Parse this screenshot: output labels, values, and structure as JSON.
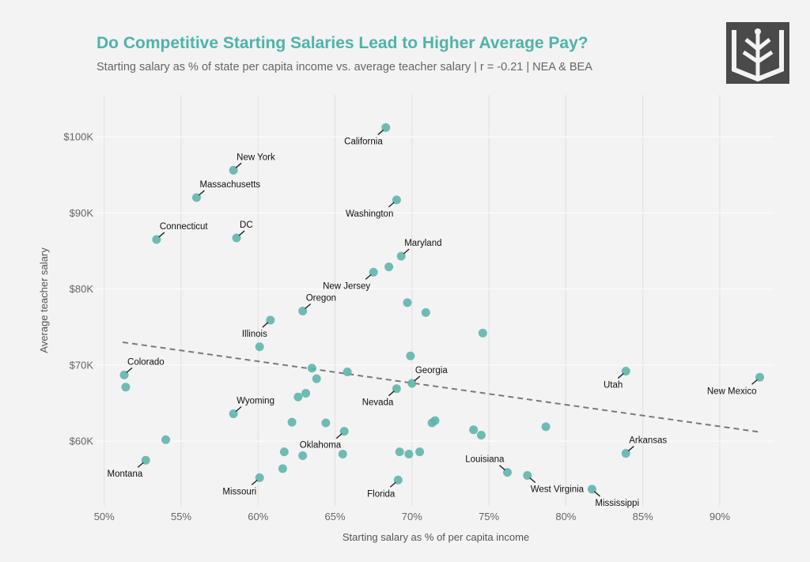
{
  "header": {
    "title": "Do Competitive Starting Salaries Lead to Higher Average Pay?",
    "subtitle": "Starting salary as % of state per capita income vs. average teacher salary | r = -0.21 | NEA & BEA"
  },
  "logo": {
    "icon": "tree-in-book-logo"
  },
  "colors": {
    "point": "#5cb3ab",
    "trend": "#7a7a7a",
    "title": "#4fb3aa",
    "grid": "#e2e2e2"
  },
  "chart_data": {
    "type": "scatter",
    "xlabel": "Starting salary as % of per capita income",
    "ylabel": "Average teacher salary",
    "xlim": [
      49.5,
      93.5
    ],
    "ylim": [
      51500,
      105500
    ],
    "x_ticks": [
      50,
      55,
      60,
      65,
      70,
      75,
      80,
      85,
      90
    ],
    "x_tick_labels": [
      "50%",
      "55%",
      "60%",
      "65%",
      "70%",
      "75%",
      "80%",
      "85%",
      "90%"
    ],
    "y_ticks": [
      60000,
      70000,
      80000,
      90000,
      100000
    ],
    "y_tick_labels": [
      "$60K",
      "$70K",
      "$80K",
      "$90K",
      "$100K"
    ],
    "trend_line": {
      "x": [
        51.2,
        92.6
      ],
      "y": [
        73000,
        61200
      ],
      "style": "dashed"
    },
    "points": [
      {
        "x": 68.3,
        "y": 101200,
        "label": "California",
        "pos": "bl"
      },
      {
        "x": 58.4,
        "y": 95600,
        "label": "New York",
        "pos": "tr"
      },
      {
        "x": 56.0,
        "y": 92000,
        "label": "Massachusetts",
        "pos": "tr"
      },
      {
        "x": 69.0,
        "y": 91700,
        "label": "Washington",
        "pos": "bl"
      },
      {
        "x": 53.4,
        "y": 86500,
        "label": "Connecticut",
        "pos": "tr"
      },
      {
        "x": 58.6,
        "y": 86700,
        "label": "DC",
        "pos": "tr"
      },
      {
        "x": 69.3,
        "y": 84300,
        "label": "Maryland",
        "pos": "tr"
      },
      {
        "x": 68.5,
        "y": 82900,
        "label": null
      },
      {
        "x": 67.5,
        "y": 82200,
        "label": "New Jersey",
        "pos": "bl"
      },
      {
        "x": 69.7,
        "y": 78200,
        "label": null
      },
      {
        "x": 70.9,
        "y": 76900,
        "label": null
      },
      {
        "x": 62.9,
        "y": 77100,
        "label": "Oregon",
        "pos": "tr"
      },
      {
        "x": 60.8,
        "y": 75900,
        "label": "Illinois",
        "pos": "bl"
      },
      {
        "x": 74.6,
        "y": 74200,
        "label": null
      },
      {
        "x": 60.1,
        "y": 72400,
        "label": null
      },
      {
        "x": 69.9,
        "y": 71200,
        "label": null
      },
      {
        "x": 63.5,
        "y": 69600,
        "label": null
      },
      {
        "x": 65.8,
        "y": 69100,
        "label": null
      },
      {
        "x": 63.8,
        "y": 68200,
        "label": null
      },
      {
        "x": 51.3,
        "y": 68700,
        "label": "Colorado",
        "pos": "tr"
      },
      {
        "x": 51.4,
        "y": 67100,
        "label": null
      },
      {
        "x": 70.0,
        "y": 67600,
        "label": "Georgia",
        "pos": "tr"
      },
      {
        "x": 69.0,
        "y": 66900,
        "label": "Nevada",
        "pos": "bl"
      },
      {
        "x": 83.9,
        "y": 69200,
        "label": "Utah",
        "pos": "bl"
      },
      {
        "x": 92.6,
        "y": 68400,
        "label": "New Mexico",
        "pos": "bl"
      },
      {
        "x": 63.1,
        "y": 66300,
        "label": null
      },
      {
        "x": 62.6,
        "y": 65800,
        "label": null
      },
      {
        "x": 58.4,
        "y": 63600,
        "label": "Wyoming",
        "pos": "tr"
      },
      {
        "x": 71.5,
        "y": 62700,
        "label": null
      },
      {
        "x": 71.3,
        "y": 62400,
        "label": null
      },
      {
        "x": 62.2,
        "y": 62500,
        "label": null
      },
      {
        "x": 64.4,
        "y": 62400,
        "label": null
      },
      {
        "x": 78.7,
        "y": 61900,
        "label": null
      },
      {
        "x": 74.0,
        "y": 61500,
        "label": null
      },
      {
        "x": 74.5,
        "y": 60800,
        "label": null
      },
      {
        "x": 65.6,
        "y": 61300,
        "label": "Oklahoma",
        "pos": "bl"
      },
      {
        "x": 54.0,
        "y": 60200,
        "label": null
      },
      {
        "x": 61.7,
        "y": 58600,
        "label": null
      },
      {
        "x": 62.9,
        "y": 58100,
        "label": null
      },
      {
        "x": 65.5,
        "y": 58300,
        "label": null
      },
      {
        "x": 69.2,
        "y": 58600,
        "label": null
      },
      {
        "x": 69.8,
        "y": 58300,
        "label": null
      },
      {
        "x": 70.5,
        "y": 58600,
        "label": null
      },
      {
        "x": 83.9,
        "y": 58400,
        "label": "Arkansas",
        "pos": "tr"
      },
      {
        "x": 52.7,
        "y": 57500,
        "label": "Montana",
        "pos": "bl"
      },
      {
        "x": 61.6,
        "y": 56400,
        "label": null
      },
      {
        "x": 76.2,
        "y": 55900,
        "label": "Louisiana",
        "pos": "tl"
      },
      {
        "x": 77.5,
        "y": 55500,
        "label": "West Virginia",
        "pos": "br"
      },
      {
        "x": 60.1,
        "y": 55200,
        "label": "Missouri",
        "pos": "bl"
      },
      {
        "x": 69.1,
        "y": 54900,
        "label": "Florida",
        "pos": "bl"
      },
      {
        "x": 81.7,
        "y": 53700,
        "label": "Mississippi",
        "pos": "br"
      }
    ]
  }
}
